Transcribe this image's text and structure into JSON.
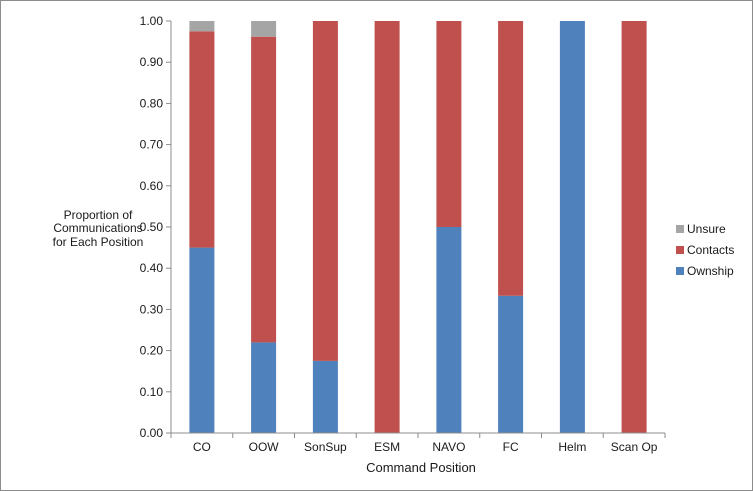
{
  "chart_data": {
    "type": "bar",
    "stacked": true,
    "title": "",
    "xlabel": "Command Position",
    "ylabel_lines": [
      "Proportion of",
      "Communications",
      "for Each Position"
    ],
    "ylim": [
      0,
      1
    ],
    "yticks": [
      "0.00",
      "0.10",
      "0.20",
      "0.30",
      "0.40",
      "0.50",
      "0.60",
      "0.70",
      "0.80",
      "0.90",
      "1.00"
    ],
    "grid": false,
    "legend_position": "right",
    "categories": [
      "CO",
      "OOW",
      "SonSup",
      "ESM",
      "NAVO",
      "FC",
      "Helm",
      "Scan Op"
    ],
    "series": [
      {
        "name": "Ownship",
        "color": "#4f81bd",
        "values": [
          0.45,
          0.22,
          0.175,
          0,
          0.5,
          0.333,
          1.0,
          0
        ]
      },
      {
        "name": "Contacts",
        "color": "#c0504d",
        "values": [
          0.525,
          0.742,
          0.825,
          1.0,
          0.5,
          0.667,
          0,
          1.0
        ]
      },
      {
        "name": "Unsure",
        "color": "#a5a5a5",
        "values": [
          0.025,
          0.038,
          0,
          0,
          0,
          0,
          0,
          0
        ]
      }
    ],
    "legend_order": [
      "Unsure",
      "Contacts",
      "Ownship"
    ]
  }
}
